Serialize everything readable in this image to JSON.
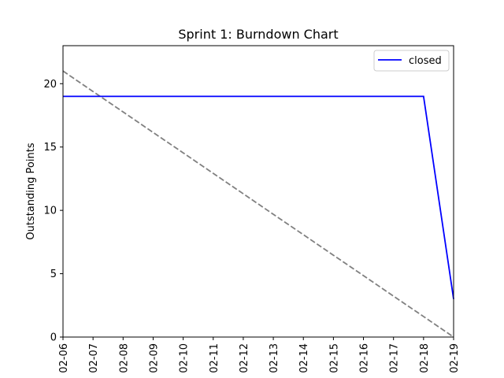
{
  "chart_data": {
    "type": "line",
    "title": "Sprint 1: Burndown Chart",
    "xlabel": "",
    "ylabel": "Outstanding Points",
    "x": [
      "02-06",
      "02-07",
      "02-08",
      "02-09",
      "02-10",
      "02-11",
      "02-12",
      "02-13",
      "02-14",
      "02-15",
      "02-16",
      "02-17",
      "02-18",
      "02-19"
    ],
    "ylim": [
      0,
      23
    ],
    "yticks": [
      0,
      5,
      10,
      15,
      20
    ],
    "grid": false,
    "legend_position": "top-right",
    "series": [
      {
        "name": "closed",
        "color": "#0000ff",
        "style": "solid",
        "values": [
          19,
          19,
          19,
          19,
          19,
          19,
          19,
          19,
          19,
          19,
          19,
          19,
          19,
          3
        ]
      },
      {
        "color": "#808080",
        "style": "dashed",
        "values": [
          21,
          19.38,
          17.77,
          16.15,
          14.54,
          12.92,
          11.31,
          9.69,
          8.08,
          6.46,
          4.85,
          3.23,
          1.62,
          0
        ]
      }
    ]
  }
}
